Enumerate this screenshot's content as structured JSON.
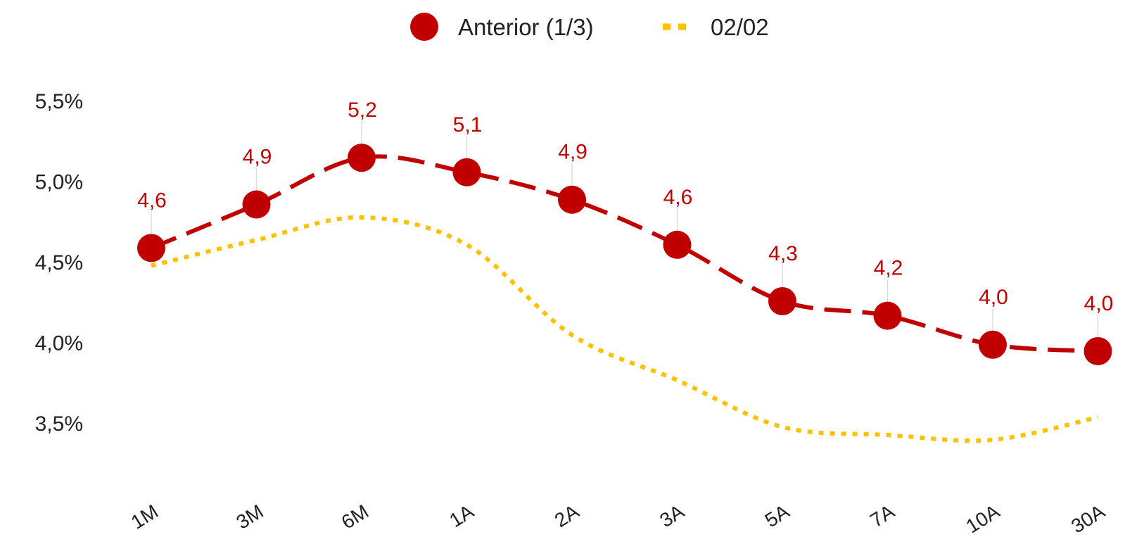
{
  "chart_data": {
    "type": "line",
    "categories": [
      "1M",
      "3M",
      "6M",
      "1A",
      "2A",
      "3A",
      "5A",
      "7A",
      "10A",
      "30A"
    ],
    "series": [
      {
        "name": "Anterior (1/3)",
        "values": [
          4.59,
          4.86,
          5.15,
          5.06,
          4.89,
          4.61,
          4.26,
          4.17,
          3.99,
          3.95
        ],
        "data_labels": [
          "4,6",
          "4,9",
          "5,2",
          "5,1",
          "4,9",
          "4,6",
          "4,3",
          "4,2",
          "4,0",
          "4,0"
        ],
        "color": "#c00000",
        "style": "dashed-with-markers"
      },
      {
        "name": "02/02",
        "values": [
          4.48,
          4.64,
          4.78,
          4.61,
          4.05,
          3.77,
          3.48,
          3.43,
          3.4,
          3.54
        ],
        "color": "#ffc000",
        "style": "dotted-smooth"
      }
    ],
    "y_ticks": [
      "5,5%",
      "5,0%",
      "4,5%",
      "4,0%",
      "3,5%"
    ],
    "y_tick_values": [
      5.5,
      5.0,
      4.5,
      4.0,
      3.5
    ],
    "ylim": [
      3.5,
      5.5
    ],
    "title": "",
    "xlabel": "",
    "ylabel": "",
    "grid": false,
    "legend_position": "top-center"
  }
}
